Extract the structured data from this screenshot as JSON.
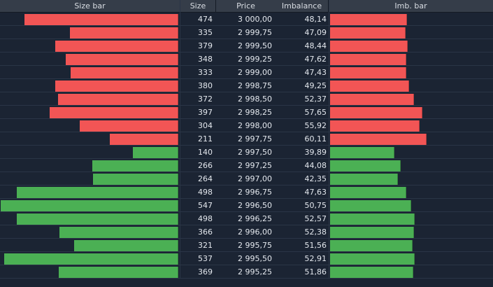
{
  "headers": {
    "size_bar": "Size bar",
    "size": "Size",
    "price": "Price",
    "imbalance": "Imbalance",
    "imb_bar": "Imb. bar"
  },
  "colors": {
    "ask": "#f25555",
    "bid": "#4bb054"
  },
  "scale": {
    "max_size": 550,
    "max_imbalance": 61
  },
  "rows": [
    {
      "side": "ask",
      "size": "474",
      "price": "3 000,00",
      "imbalance": "48,14"
    },
    {
      "side": "ask",
      "size": "335",
      "price": "2 999,75",
      "imbalance": "47,09"
    },
    {
      "side": "ask",
      "size": "379",
      "price": "2 999,50",
      "imbalance": "48,44"
    },
    {
      "side": "ask",
      "size": "348",
      "price": "2 999,25",
      "imbalance": "47,62"
    },
    {
      "side": "ask",
      "size": "333",
      "price": "2 999,00",
      "imbalance": "47,43"
    },
    {
      "side": "ask",
      "size": "380",
      "price": "2 998,75",
      "imbalance": "49,25"
    },
    {
      "side": "ask",
      "size": "372",
      "price": "2 998,50",
      "imbalance": "52,37"
    },
    {
      "side": "ask",
      "size": "397",
      "price": "2 998,25",
      "imbalance": "57,65"
    },
    {
      "side": "ask",
      "size": "304",
      "price": "2 998,00",
      "imbalance": "55,92"
    },
    {
      "side": "ask",
      "size": "211",
      "price": "2 997,75",
      "imbalance": "60,11"
    },
    {
      "side": "bid",
      "size": "140",
      "price": "2 997,50",
      "imbalance": "39,89"
    },
    {
      "side": "bid",
      "size": "266",
      "price": "2 997,25",
      "imbalance": "44,08"
    },
    {
      "side": "bid",
      "size": "264",
      "price": "2 997,00",
      "imbalance": "42,35"
    },
    {
      "side": "bid",
      "size": "498",
      "price": "2 996,75",
      "imbalance": "47,63"
    },
    {
      "side": "bid",
      "size": "547",
      "price": "2 996,50",
      "imbalance": "50,75"
    },
    {
      "side": "bid",
      "size": "498",
      "price": "2 996,25",
      "imbalance": "52,57"
    },
    {
      "side": "bid",
      "size": "366",
      "price": "2 996,00",
      "imbalance": "52,38"
    },
    {
      "side": "bid",
      "size": "321",
      "price": "2 995,75",
      "imbalance": "51,56"
    },
    {
      "side": "bid",
      "size": "537",
      "price": "2 995,50",
      "imbalance": "52,91"
    },
    {
      "side": "bid",
      "size": "369",
      "price": "2 995,25",
      "imbalance": "51,86"
    }
  ]
}
